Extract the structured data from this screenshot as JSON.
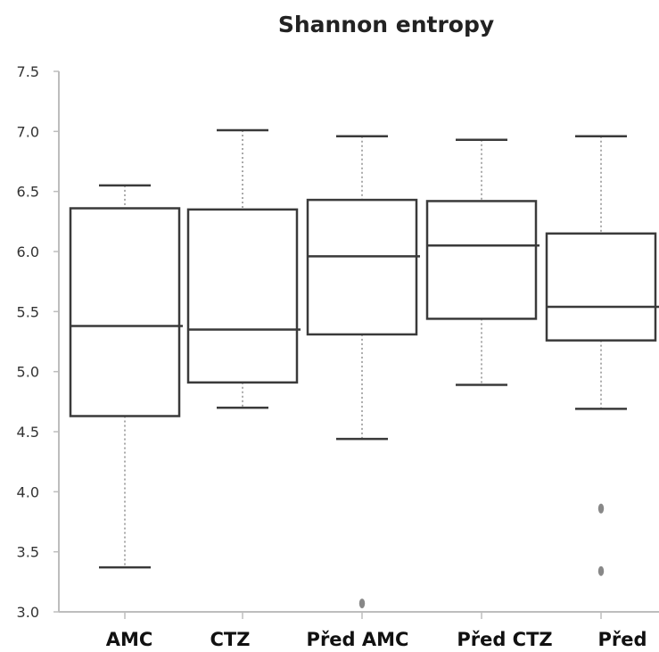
{
  "chart_data": {
    "type": "box",
    "title": "Shannon entropy",
    "xlabel": "",
    "ylabel": "",
    "ylim": [
      3.0,
      7.5
    ],
    "yticks": [
      "3.0",
      "3.5",
      "4.0",
      "4.5",
      "5.0",
      "5.5",
      "6.0",
      "6.5",
      "7.0",
      "7.5"
    ],
    "grid": false,
    "categories": [
      "AMC",
      "CTZ",
      "Před AMC",
      "Před CTZ",
      "Před"
    ],
    "boxes": [
      {
        "min": 3.37,
        "q1": 4.63,
        "median": 5.38,
        "q3": 6.36,
        "max": 6.55,
        "outliers": []
      },
      {
        "min": 4.7,
        "q1": 4.91,
        "median": 5.35,
        "q3": 6.35,
        "max": 7.01,
        "outliers": []
      },
      {
        "min": 4.44,
        "q1": 5.31,
        "median": 5.96,
        "q3": 6.43,
        "max": 6.96,
        "outliers": [
          3.07
        ]
      },
      {
        "min": 4.89,
        "q1": 5.44,
        "median": 6.05,
        "q3": 6.42,
        "max": 6.93,
        "outliers": []
      },
      {
        "min": 4.69,
        "q1": 5.26,
        "median": 5.54,
        "q3": 6.15,
        "max": 6.96,
        "outliers": [
          3.86,
          3.34
        ]
      }
    ],
    "colors": {
      "box": "#3a3a3a",
      "whisker": "#aaaaaa",
      "outlier": "#888888",
      "axis": "#bbbbbb"
    }
  }
}
